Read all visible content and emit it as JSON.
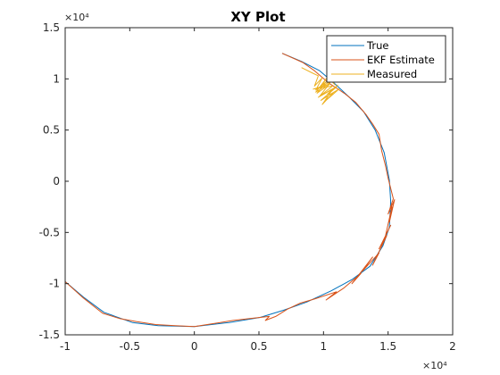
{
  "chart_data": {
    "type": "line",
    "title": "XY Plot",
    "xlabel": "",
    "ylabel": "",
    "xlim": [
      -10000,
      20000
    ],
    "ylim": [
      -15000,
      15000
    ],
    "x_ticks": [
      -10000,
      -5000,
      0,
      5000,
      10000,
      15000,
      20000
    ],
    "y_ticks": [
      -15000,
      -10000,
      -5000,
      0,
      5000,
      10000,
      15000
    ],
    "x_tick_labels": [
      "-1",
      "-0.5",
      "0",
      "0.5",
      "1",
      "1.5",
      "2"
    ],
    "y_tick_labels": [
      "-1.5",
      "-1",
      "-0.5",
      "0",
      "0.5",
      "1",
      "1.5"
    ],
    "x_exponent_label": "×10⁴",
    "y_exponent_label": "×10⁴",
    "grid": false,
    "legend_position": "top-right",
    "series": [
      {
        "name": "True",
        "color": "#0072bd",
        "x": [
          6800,
          8300,
          9700,
          10900,
          12000,
          13100,
          14000,
          14700,
          15100,
          15200,
          15100,
          14600,
          13600,
          12200,
          10600,
          8700,
          6900,
          5100,
          2700,
          0,
          -2800,
          -4800,
          -7000,
          -8600,
          -10000
        ],
        "y": [
          12500,
          11700,
          10800,
          9500,
          8200,
          6800,
          5000,
          2800,
          100,
          -2000,
          -4500,
          -6300,
          -8300,
          -9600,
          -10700,
          -11800,
          -12600,
          -13300,
          -13800,
          -14200,
          -14100,
          -13800,
          -12800,
          -11300,
          -9800
        ]
      },
      {
        "name": "EKF Estimate",
        "color": "#d95319",
        "x": [
          6800,
          8400,
          9300,
          10400,
          11600,
          12500,
          13300,
          13800,
          14300,
          14500,
          14800,
          15000,
          15200,
          15400,
          15000,
          15500,
          15100,
          15300,
          14800,
          15200,
          14300,
          14900,
          13800,
          14300,
          13000,
          13800,
          12200,
          12900,
          11600,
          10200,
          11000,
          9300,
          8200,
          7200,
          6300,
          5500,
          5800,
          4300,
          3000,
          2000,
          1000,
          0,
          -1500,
          -3000,
          -4500,
          -5800,
          -7100,
          -8600,
          -10000
        ],
        "y": [
          12500,
          11600,
          10800,
          9600,
          8600,
          7700,
          6500,
          5600,
          4600,
          3000,
          1500,
          300,
          -700,
          -1700,
          -3200,
          -1800,
          -4000,
          -2500,
          -5300,
          -4300,
          -6600,
          -5300,
          -8200,
          -7000,
          -8800,
          -7400,
          -10000,
          -9000,
          -10400,
          -11600,
          -10800,
          -11500,
          -11900,
          -12500,
          -13200,
          -13600,
          -13200,
          -13400,
          -13600,
          -13800,
          -14000,
          -14200,
          -14100,
          -14000,
          -13700,
          -13400,
          -12900,
          -11400,
          -9800
        ]
      },
      {
        "name": "Measured",
        "color": "#edb120",
        "x": [
          8300,
          9100,
          9600,
          9300,
          9900,
          9400,
          10200,
          9500,
          10500,
          9200,
          10700,
          9600,
          11000,
          9800,
          10800,
          9900,
          10400,
          11200,
          10100,
          10600,
          11100,
          10300,
          10800,
          9700,
          10500,
          9400,
          10200,
          9800,
          10600,
          10900
        ],
        "y": [
          11100,
          10600,
          10300,
          9300,
          10100,
          8900,
          9700,
          8600,
          9500,
          9000,
          9300,
          8200,
          9200,
          7900,
          8700,
          7500,
          8400,
          9000,
          7800,
          8800,
          9400,
          8500,
          9100,
          8300,
          9600,
          8700,
          10000,
          9200,
          9800,
          9400
        ]
      }
    ]
  }
}
